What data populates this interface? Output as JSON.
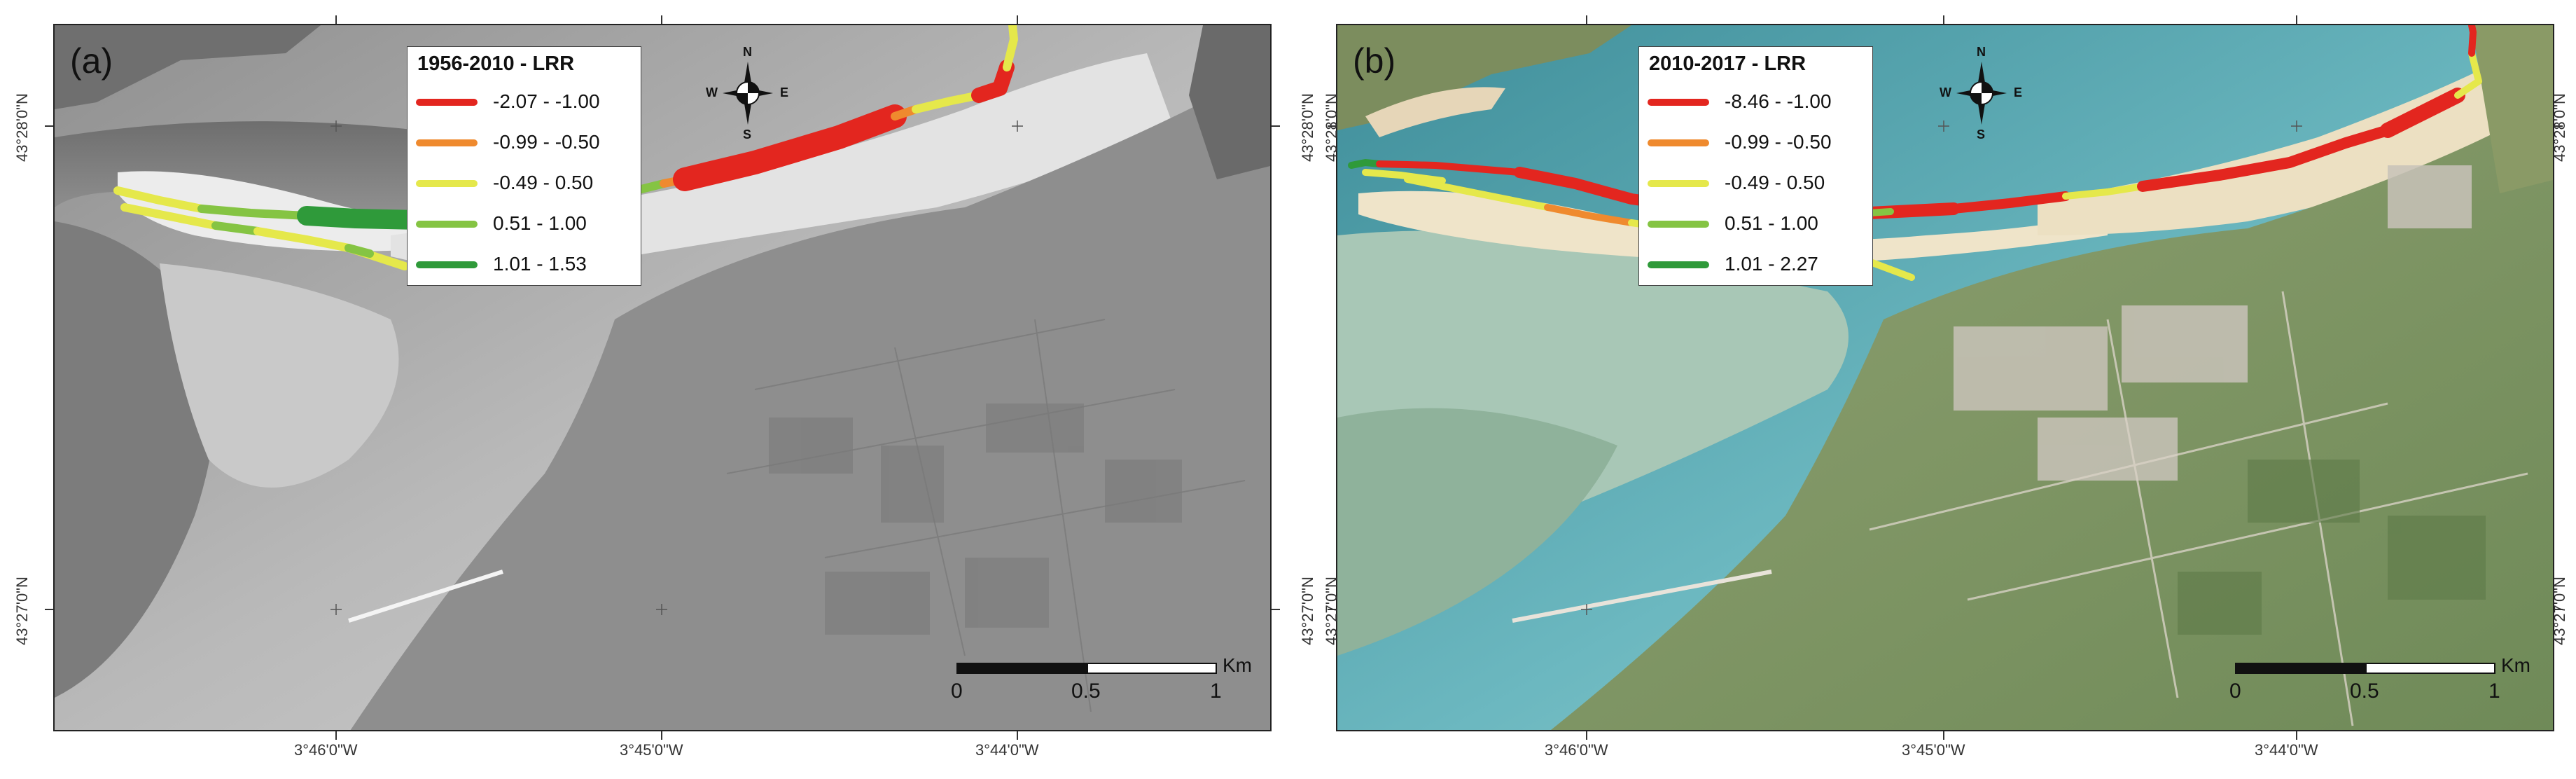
{
  "panels": [
    {
      "id": "a",
      "label": "(a)",
      "legend_title": "1956-2010  -  LRR",
      "classes": [
        {
          "label": "-2.07 - -1.00",
          "color": "#e3261f"
        },
        {
          "label": "-0.99 - -0.50",
          "color": "#ef8a2e"
        },
        {
          "label": "-0.49 - 0.50",
          "color": "#e5e84b"
        },
        {
          "label": "0.51 - 1.00",
          "color": "#85c443"
        },
        {
          "label": "1.01 - 1.53",
          "color": "#2f9a3a"
        }
      ],
      "basemap": "grayscale aerial photograph",
      "lon_ticks": [
        "3°46'0\"W",
        "3°45'0\"W",
        "3°44'0\"W"
      ],
      "lat_ticks": [
        "43°28'0\"N",
        "43°27'0\"N"
      ]
    },
    {
      "id": "b",
      "label": "(b)",
      "legend_title": "2010-2017 - LRR",
      "classes": [
        {
          "label": "-8.46 - -1.00",
          "color": "#e3261f"
        },
        {
          "label": "-0.99 - -0.50",
          "color": "#ef8a2e"
        },
        {
          "label": "-0.49 - 0.50",
          "color": "#e5e84b"
        },
        {
          "label": "0.51 - 1.00",
          "color": "#85c443"
        },
        {
          "label": "1.01 - 2.27",
          "color": "#2f9a3a"
        }
      ],
      "basemap": "colour aerial photograph",
      "lon_ticks": [
        "3°46'0\"W",
        "3°45'0\"W",
        "3°44'0\"W"
      ],
      "lat_ticks": [
        "43°28'0\"N",
        "43°27'0\"N"
      ]
    }
  ],
  "compass": {
    "n": "N",
    "s": "S",
    "e": "E",
    "w": "W"
  },
  "scale": {
    "unit": "Km",
    "ticks": [
      "0",
      "0.5",
      "1"
    ]
  }
}
